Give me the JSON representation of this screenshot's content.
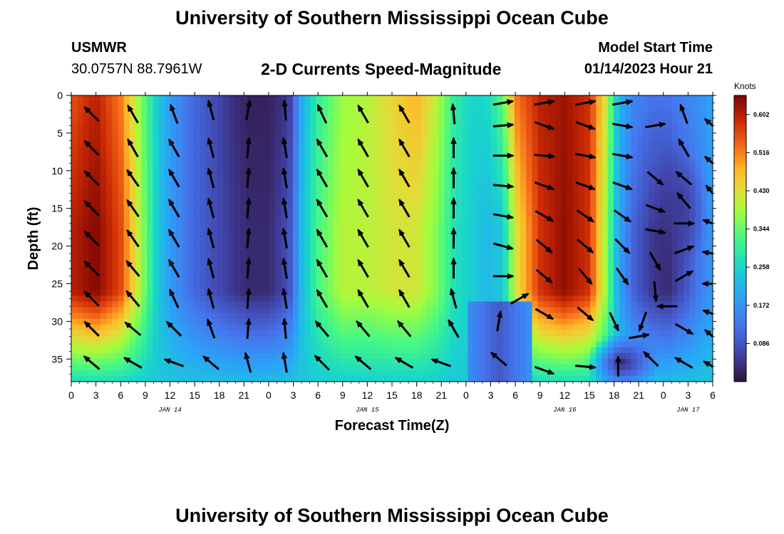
{
  "page": {
    "title": "University of Southern Mississippi Ocean Cube",
    "station_id": "USMWR",
    "coordinates": "30.0757N  88.7961W",
    "chart_title": "2-D Currents Speed-Magnitude",
    "model_start_label": "Model Start Time",
    "model_start_value": "01/14/2023 Hour 21",
    "footer_title": "University of Southern Mississippi Ocean Cube"
  },
  "chart_data": {
    "type": "heatmap",
    "title": "2-D Currents Speed-Magnitude",
    "xlabel": "Forecast Time(Z)",
    "ylabel": "Depth (ft)",
    "x_range_hours": [
      0,
      78
    ],
    "y_range_ft": [
      0,
      38
    ],
    "y_ticks": [
      0,
      5,
      10,
      15,
      20,
      25,
      30,
      35
    ],
    "x_ticks": [
      {
        "h": 0,
        "label": "0"
      },
      {
        "h": 3,
        "label": "3"
      },
      {
        "h": 6,
        "label": "6"
      },
      {
        "h": 9,
        "label": "9"
      },
      {
        "h": 12,
        "label": "12"
      },
      {
        "h": 15,
        "label": "15"
      },
      {
        "h": 18,
        "label": "18"
      },
      {
        "h": 21,
        "label": "21"
      },
      {
        "h": 24,
        "label": "0"
      },
      {
        "h": 27,
        "label": "3"
      },
      {
        "h": 30,
        "label": "6"
      },
      {
        "h": 33,
        "label": "9"
      },
      {
        "h": 36,
        "label": "12"
      },
      {
        "h": 39,
        "label": "15"
      },
      {
        "h": 42,
        "label": "18"
      },
      {
        "h": 45,
        "label": "21"
      },
      {
        "h": 48,
        "label": "0"
      },
      {
        "h": 51,
        "label": "3"
      },
      {
        "h": 54,
        "label": "6"
      },
      {
        "h": 57,
        "label": "9"
      },
      {
        "h": 60,
        "label": "12"
      },
      {
        "h": 63,
        "label": "15"
      },
      {
        "h": 66,
        "label": "18"
      },
      {
        "h": 69,
        "label": "21"
      },
      {
        "h": 72,
        "label": "0"
      },
      {
        "h": 75,
        "label": "3"
      },
      {
        "h": 78,
        "label": "6"
      }
    ],
    "date_labels": [
      {
        "h": 12,
        "label": "JAN 14"
      },
      {
        "h": 36,
        "label": "JAN 15"
      },
      {
        "h": 60,
        "label": "JAN 16"
      },
      {
        "h": 75,
        "label": "JAN 17"
      }
    ],
    "colorbar": {
      "unit": "Knots",
      "min": 0.0,
      "max": 0.645,
      "ticks": [
        0.602,
        0.516,
        0.43,
        0.344,
        0.258,
        0.172,
        0.086
      ],
      "tick_labels": [
        "0.602",
        "0.516",
        "0.430",
        "0.344",
        "0.258",
        "0.172",
        "0.086"
      ]
    },
    "speed_profile_surface": [
      [
        0,
        0.55
      ],
      [
        3,
        0.6
      ],
      [
        6,
        0.52
      ],
      [
        8.5,
        0.36
      ],
      [
        10.5,
        0.24
      ],
      [
        12.5,
        0.17
      ],
      [
        14.5,
        0.12
      ],
      [
        17,
        0.08
      ],
      [
        19.5,
        0.04
      ],
      [
        21.5,
        0.02
      ],
      [
        24,
        0.02
      ],
      [
        26.5,
        0.05
      ],
      [
        28,
        0.2
      ],
      [
        30,
        0.3
      ],
      [
        33,
        0.38
      ],
      [
        36,
        0.4
      ],
      [
        39,
        0.44
      ],
      [
        42,
        0.48
      ],
      [
        44.5,
        0.4
      ],
      [
        46.5,
        0.3
      ],
      [
        48.5,
        0.26
      ],
      [
        50.5,
        0.26
      ],
      [
        52.5,
        0.34
      ],
      [
        54,
        0.52
      ],
      [
        57,
        0.6
      ],
      [
        60,
        0.62
      ],
      [
        63,
        0.58
      ],
      [
        65,
        0.42
      ],
      [
        66.5,
        0.22
      ],
      [
        68.5,
        0.15
      ],
      [
        70.5,
        0.13
      ],
      [
        72.5,
        0.13
      ],
      [
        74.5,
        0.15
      ],
      [
        76.5,
        0.17
      ],
      [
        78,
        0.2
      ]
    ],
    "speed_profile_mid": [
      [
        0,
        0.6
      ],
      [
        3,
        0.64
      ],
      [
        6,
        0.56
      ],
      [
        8.5,
        0.38
      ],
      [
        10.5,
        0.24
      ],
      [
        12.5,
        0.17
      ],
      [
        14.5,
        0.12
      ],
      [
        17,
        0.08
      ],
      [
        19.5,
        0.05
      ],
      [
        21.5,
        0.03
      ],
      [
        24,
        0.03
      ],
      [
        26.5,
        0.08
      ],
      [
        28,
        0.22
      ],
      [
        30,
        0.32
      ],
      [
        33,
        0.4
      ],
      [
        36,
        0.4
      ],
      [
        39,
        0.42
      ],
      [
        42,
        0.42
      ],
      [
        44.5,
        0.36
      ],
      [
        46.5,
        0.28
      ],
      [
        48.5,
        0.25
      ],
      [
        50.5,
        0.22
      ],
      [
        52.5,
        0.24
      ],
      [
        54,
        0.42
      ],
      [
        57,
        0.58
      ],
      [
        60,
        0.63
      ],
      [
        63,
        0.58
      ],
      [
        65,
        0.38
      ],
      [
        66.5,
        0.2
      ],
      [
        68.5,
        0.1
      ],
      [
        70.5,
        0.05
      ],
      [
        72.5,
        0.03
      ],
      [
        74.5,
        0.08
      ],
      [
        76.5,
        0.14
      ],
      [
        78,
        0.18
      ]
    ],
    "vectors": [
      {
        "h": 2.5,
        "d": 2.5,
        "angle": 315
      },
      {
        "h": 7.5,
        "d": 2.5,
        "angle": 330
      },
      {
        "h": 12.5,
        "d": 2.5,
        "angle": 340
      },
      {
        "h": 17,
        "d": 2,
        "angle": 345
      },
      {
        "h": 21.5,
        "d": 2,
        "angle": 10
      },
      {
        "h": 26,
        "d": 2,
        "angle": 355
      },
      {
        "h": 30.5,
        "d": 2.5,
        "angle": 335
      },
      {
        "h": 35.5,
        "d": 2.5,
        "angle": 330
      },
      {
        "h": 40.5,
        "d": 2.5,
        "angle": 330
      },
      {
        "h": 46.5,
        "d": 2.5,
        "angle": 355
      },
      {
        "h": 52.5,
        "d": 1,
        "angle": 80
      },
      {
        "h": 57.5,
        "d": 1,
        "angle": 80
      },
      {
        "h": 62.5,
        "d": 1,
        "angle": 80
      },
      {
        "h": 67,
        "d": 1,
        "angle": 80
      },
      {
        "h": 71,
        "d": 4,
        "angle": 80
      },
      {
        "h": 74.5,
        "d": 2.5,
        "angle": 340
      },
      {
        "h": 78,
        "d": 4,
        "angle": 310
      },
      {
        "h": 2.5,
        "d": 7,
        "angle": 315
      },
      {
        "h": 7.5,
        "d": 7,
        "angle": 330
      },
      {
        "h": 12.5,
        "d": 7,
        "angle": 330
      },
      {
        "h": 17,
        "d": 7,
        "angle": 345
      },
      {
        "h": 21.5,
        "d": 7,
        "angle": 5
      },
      {
        "h": 26,
        "d": 7,
        "angle": 350
      },
      {
        "h": 30.5,
        "d": 7,
        "angle": 330
      },
      {
        "h": 35.5,
        "d": 7,
        "angle": 330
      },
      {
        "h": 40.5,
        "d": 7,
        "angle": 330
      },
      {
        "h": 46.5,
        "d": 7,
        "angle": 0
      },
      {
        "h": 52.5,
        "d": 4,
        "angle": 85
      },
      {
        "h": 57.5,
        "d": 4,
        "angle": 110
      },
      {
        "h": 62.5,
        "d": 4,
        "angle": 110
      },
      {
        "h": 67,
        "d": 4,
        "angle": 100
      },
      {
        "h": 74.5,
        "d": 7,
        "angle": 330
      },
      {
        "h": 78,
        "d": 9,
        "angle": 310
      },
      {
        "h": 2.5,
        "d": 11,
        "angle": 315
      },
      {
        "h": 7.5,
        "d": 11,
        "angle": 325
      },
      {
        "h": 12.5,
        "d": 11,
        "angle": 330
      },
      {
        "h": 17,
        "d": 11,
        "angle": 345
      },
      {
        "h": 21.5,
        "d": 11,
        "angle": 5
      },
      {
        "h": 26,
        "d": 11,
        "angle": 350
      },
      {
        "h": 30.5,
        "d": 11,
        "angle": 330
      },
      {
        "h": 35.5,
        "d": 11,
        "angle": 330
      },
      {
        "h": 40.5,
        "d": 11,
        "angle": 330
      },
      {
        "h": 46.5,
        "d": 11,
        "angle": 0
      },
      {
        "h": 52.5,
        "d": 8,
        "angle": 90
      },
      {
        "h": 57.5,
        "d": 8,
        "angle": 95
      },
      {
        "h": 62.5,
        "d": 8,
        "angle": 100
      },
      {
        "h": 67,
        "d": 8,
        "angle": 100
      },
      {
        "h": 71,
        "d": 11,
        "angle": 130
      },
      {
        "h": 74.5,
        "d": 11,
        "angle": 310
      },
      {
        "h": 78,
        "d": 13,
        "angle": 320
      },
      {
        "h": 2.5,
        "d": 15,
        "angle": 315
      },
      {
        "h": 7.5,
        "d": 15,
        "angle": 325
      },
      {
        "h": 12.5,
        "d": 15,
        "angle": 330
      },
      {
        "h": 17,
        "d": 15,
        "angle": 345
      },
      {
        "h": 21.5,
        "d": 15,
        "angle": 5
      },
      {
        "h": 26,
        "d": 15,
        "angle": 350
      },
      {
        "h": 30.5,
        "d": 15,
        "angle": 330
      },
      {
        "h": 35.5,
        "d": 15,
        "angle": 330
      },
      {
        "h": 40.5,
        "d": 15,
        "angle": 330
      },
      {
        "h": 46.5,
        "d": 15,
        "angle": 0
      },
      {
        "h": 52.5,
        "d": 12,
        "angle": 95
      },
      {
        "h": 57.5,
        "d": 12,
        "angle": 110
      },
      {
        "h": 62.5,
        "d": 12,
        "angle": 110
      },
      {
        "h": 67,
        "d": 12,
        "angle": 110
      },
      {
        "h": 71,
        "d": 15,
        "angle": 110
      },
      {
        "h": 74.5,
        "d": 14,
        "angle": 320
      },
      {
        "h": 78,
        "d": 17,
        "angle": 290
      },
      {
        "h": 2.5,
        "d": 19,
        "angle": 315
      },
      {
        "h": 7.5,
        "d": 19,
        "angle": 325
      },
      {
        "h": 12.5,
        "d": 19,
        "angle": 330
      },
      {
        "h": 17,
        "d": 19,
        "angle": 345
      },
      {
        "h": 21.5,
        "d": 19,
        "angle": 5
      },
      {
        "h": 26,
        "d": 19,
        "angle": 350
      },
      {
        "h": 30.5,
        "d": 19,
        "angle": 330
      },
      {
        "h": 35.5,
        "d": 19,
        "angle": 330
      },
      {
        "h": 40.5,
        "d": 19,
        "angle": 330
      },
      {
        "h": 46.5,
        "d": 19,
        "angle": 0
      },
      {
        "h": 52.5,
        "d": 16,
        "angle": 100
      },
      {
        "h": 57.5,
        "d": 16,
        "angle": 120
      },
      {
        "h": 62.5,
        "d": 16,
        "angle": 125
      },
      {
        "h": 67,
        "d": 16,
        "angle": 125
      },
      {
        "h": 71,
        "d": 18,
        "angle": 100
      },
      {
        "h": 74.5,
        "d": 17,
        "angle": 90
      },
      {
        "h": 78,
        "d": 21,
        "angle": 280
      },
      {
        "h": 2.5,
        "d": 23,
        "angle": 315
      },
      {
        "h": 7.5,
        "d": 23,
        "angle": 320
      },
      {
        "h": 12.5,
        "d": 23,
        "angle": 330
      },
      {
        "h": 17,
        "d": 23,
        "angle": 345
      },
      {
        "h": 21.5,
        "d": 23,
        "angle": 5
      },
      {
        "h": 26,
        "d": 23,
        "angle": 350
      },
      {
        "h": 30.5,
        "d": 23,
        "angle": 330
      },
      {
        "h": 35.5,
        "d": 23,
        "angle": 330
      },
      {
        "h": 40.5,
        "d": 23,
        "angle": 330
      },
      {
        "h": 46.5,
        "d": 23,
        "angle": 0
      },
      {
        "h": 52.5,
        "d": 20,
        "angle": 105
      },
      {
        "h": 57.5,
        "d": 20,
        "angle": 130
      },
      {
        "h": 62.5,
        "d": 20,
        "angle": 130
      },
      {
        "h": 67,
        "d": 20,
        "angle": 135
      },
      {
        "h": 71,
        "d": 22,
        "angle": 150
      },
      {
        "h": 74.5,
        "d": 20.5,
        "angle": 70
      },
      {
        "h": 78,
        "d": 25,
        "angle": 270
      },
      {
        "h": 2.5,
        "d": 27,
        "angle": 315
      },
      {
        "h": 7.5,
        "d": 27,
        "angle": 320
      },
      {
        "h": 12.5,
        "d": 27,
        "angle": 335
      },
      {
        "h": 17,
        "d": 27,
        "angle": 345
      },
      {
        "h": 21.5,
        "d": 27,
        "angle": 5
      },
      {
        "h": 26,
        "d": 27,
        "angle": 350
      },
      {
        "h": 30.5,
        "d": 27,
        "angle": 330
      },
      {
        "h": 35.5,
        "d": 27,
        "angle": 330
      },
      {
        "h": 40.5,
        "d": 27,
        "angle": 330
      },
      {
        "h": 46.5,
        "d": 27,
        "angle": 345
      },
      {
        "h": 52.5,
        "d": 24,
        "angle": 90
      },
      {
        "h": 57.5,
        "d": 24,
        "angle": 130
      },
      {
        "h": 62.5,
        "d": 24,
        "angle": 140
      },
      {
        "h": 67,
        "d": 24,
        "angle": 145
      },
      {
        "h": 71,
        "d": 26,
        "angle": 175
      },
      {
        "h": 74.5,
        "d": 24,
        "angle": 60
      },
      {
        "h": 78,
        "d": 29,
        "angle": 290
      },
      {
        "h": 2.5,
        "d": 31,
        "angle": 315
      },
      {
        "h": 7.5,
        "d": 31,
        "angle": 310
      },
      {
        "h": 12.5,
        "d": 31,
        "angle": 315
      },
      {
        "h": 17,
        "d": 31,
        "angle": 340
      },
      {
        "h": 21.5,
        "d": 31,
        "angle": 5
      },
      {
        "h": 26,
        "d": 31,
        "angle": 355
      },
      {
        "h": 30.5,
        "d": 31,
        "angle": 320
      },
      {
        "h": 35.5,
        "d": 31,
        "angle": 320
      },
      {
        "h": 40.5,
        "d": 31,
        "angle": 320
      },
      {
        "h": 46.5,
        "d": 31,
        "angle": 330
      },
      {
        "h": 52,
        "d": 30,
        "angle": 10
      },
      {
        "h": 54.5,
        "d": 27,
        "angle": 60
      },
      {
        "h": 57.5,
        "d": 29,
        "angle": 120
      },
      {
        "h": 62.5,
        "d": 29,
        "angle": 130
      },
      {
        "h": 66,
        "d": 30,
        "angle": 155
      },
      {
        "h": 69.5,
        "d": 30,
        "angle": 200
      },
      {
        "h": 72.5,
        "d": 28,
        "angle": 270
      },
      {
        "h": 74.5,
        "d": 31,
        "angle": 120
      },
      {
        "h": 78,
        "d": 32,
        "angle": 310
      },
      {
        "h": 2.5,
        "d": 35.5,
        "angle": 310
      },
      {
        "h": 7.5,
        "d": 35.5,
        "angle": 300
      },
      {
        "h": 12.5,
        "d": 35.5,
        "angle": 290
      },
      {
        "h": 17,
        "d": 35.5,
        "angle": 310
      },
      {
        "h": 21.5,
        "d": 35.5,
        "angle": 345
      },
      {
        "h": 26,
        "d": 35.5,
        "angle": 350
      },
      {
        "h": 30.5,
        "d": 35.5,
        "angle": 315
      },
      {
        "h": 35.5,
        "d": 35.5,
        "angle": 310
      },
      {
        "h": 40.5,
        "d": 35.5,
        "angle": 300
      },
      {
        "h": 45,
        "d": 35.5,
        "angle": 290
      },
      {
        "h": 52,
        "d": 35,
        "angle": 310
      },
      {
        "h": 57.5,
        "d": 36.5,
        "angle": 110
      },
      {
        "h": 62.5,
        "d": 36,
        "angle": 95
      },
      {
        "h": 66.5,
        "d": 36,
        "angle": 0
      },
      {
        "h": 69,
        "d": 32,
        "angle": 80
      },
      {
        "h": 70.5,
        "d": 35,
        "angle": 315
      },
      {
        "h": 74.5,
        "d": 35.5,
        "angle": 300
      },
      {
        "h": 78,
        "d": 36,
        "angle": 300
      }
    ]
  }
}
